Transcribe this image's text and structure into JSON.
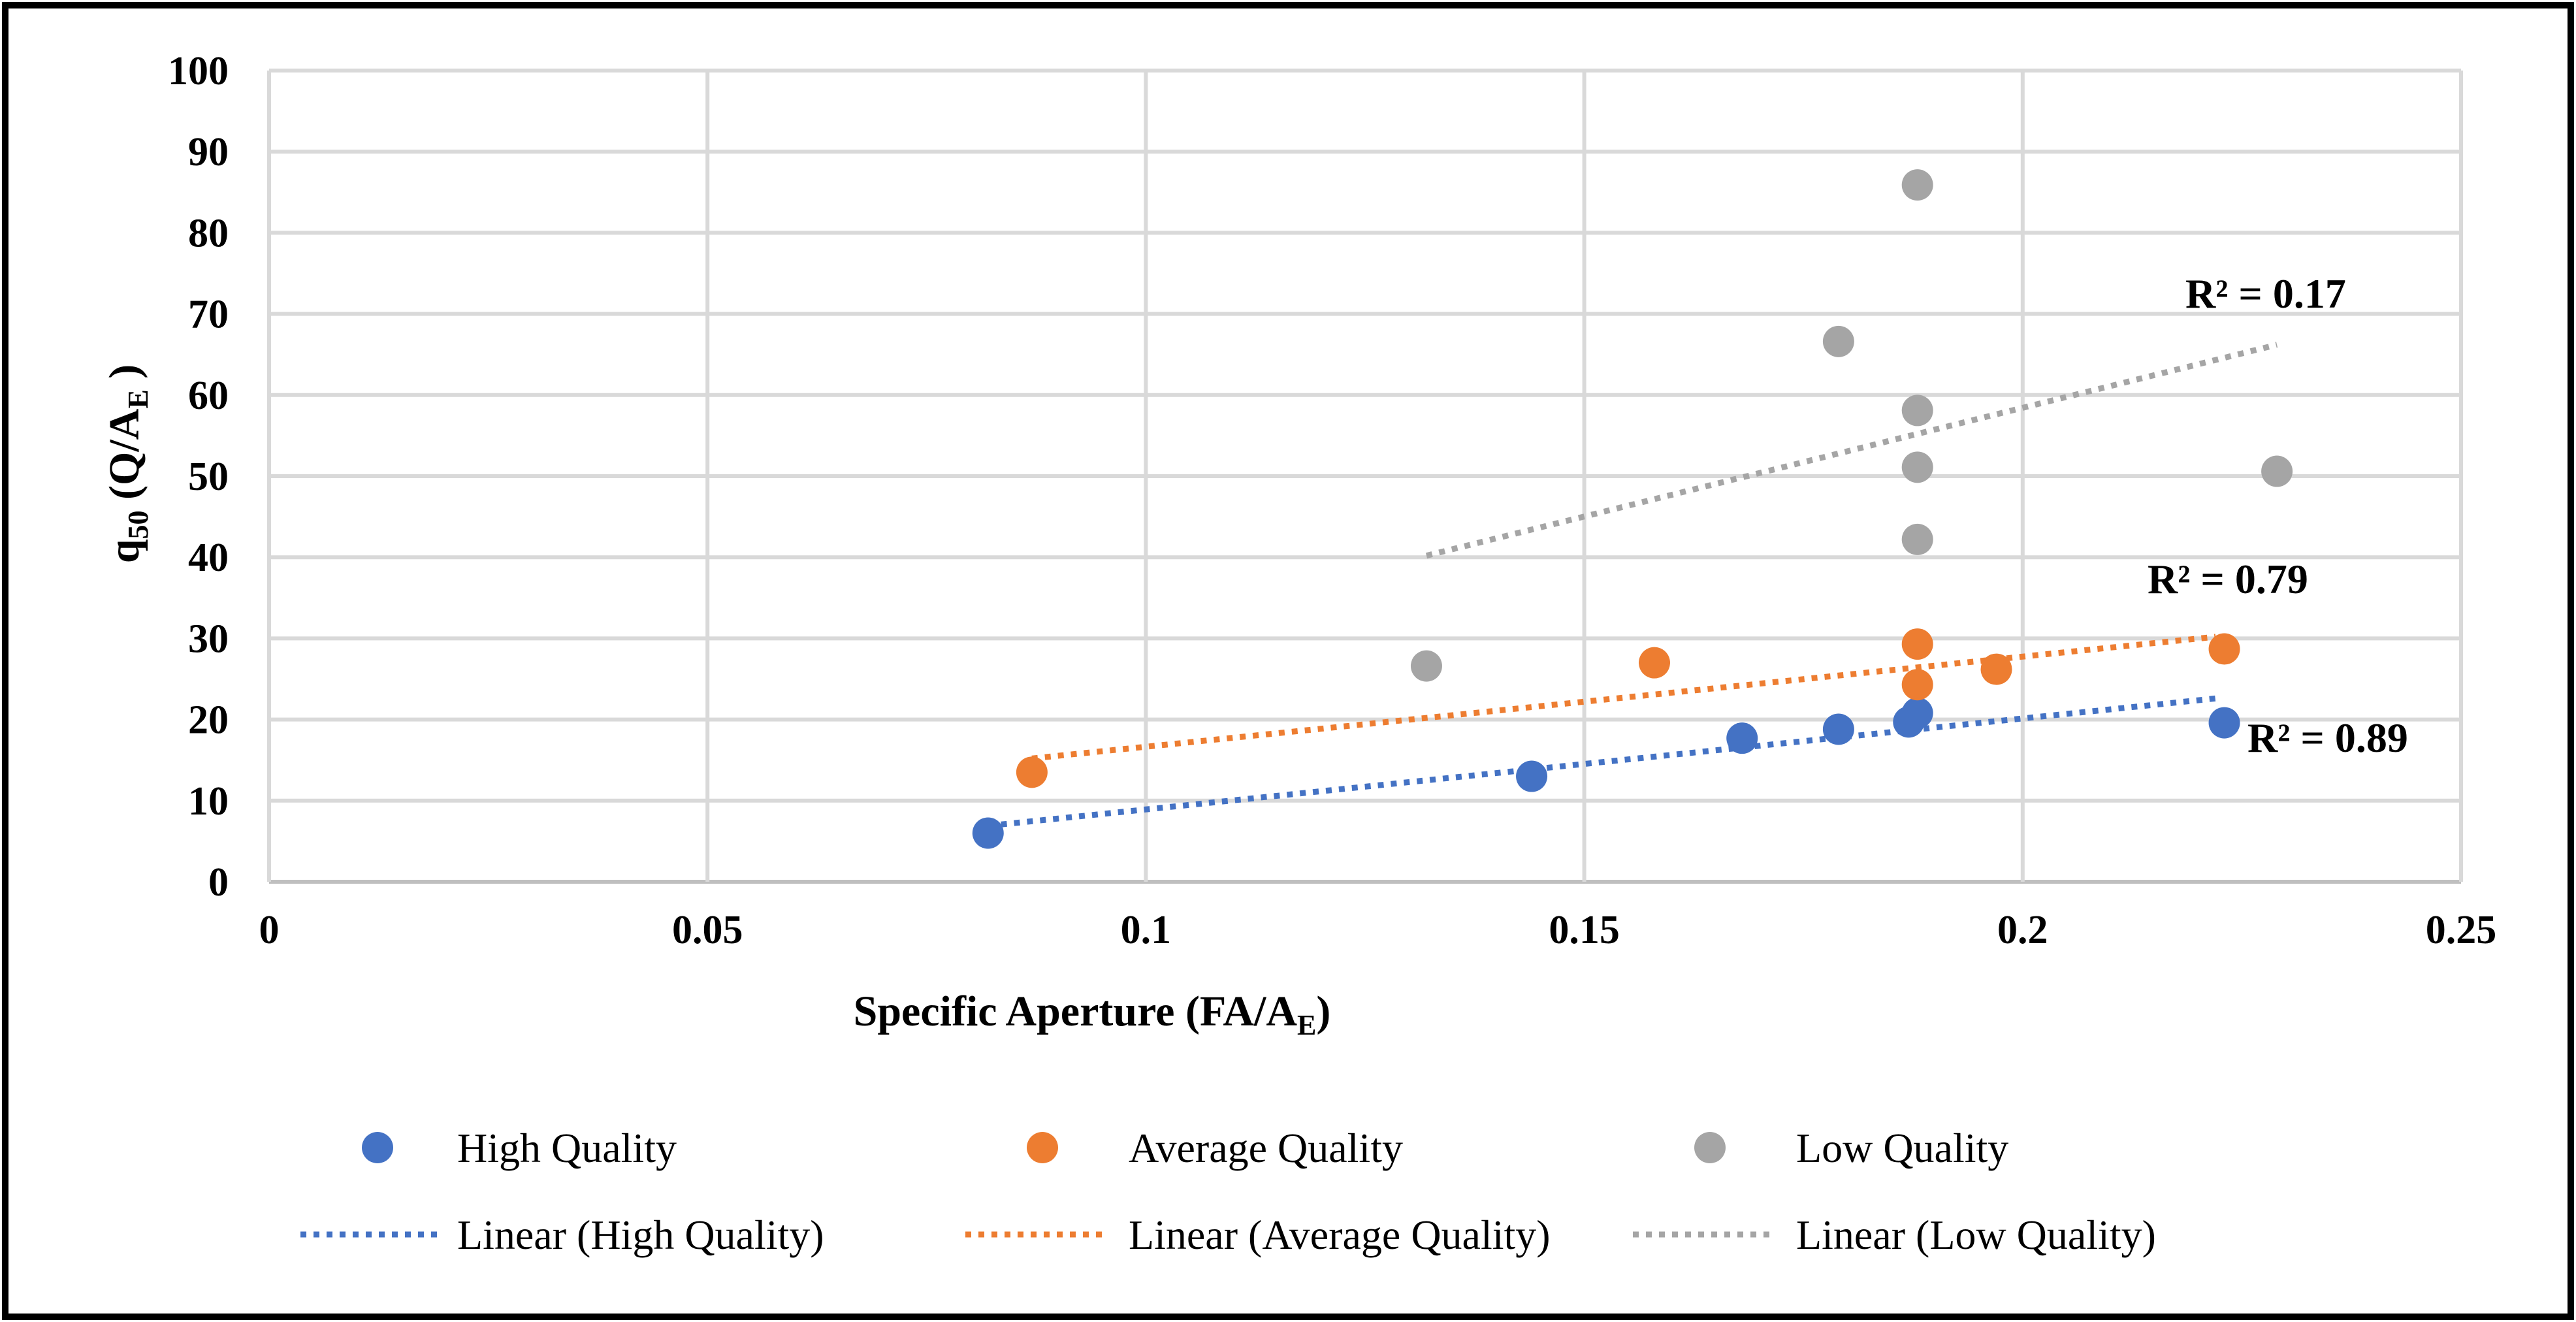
{
  "chart_data": {
    "type": "scatter",
    "xlabel": {
      "main": "Specific Aperture (FA/A",
      "sub": "E",
      "close": ")"
    },
    "ylabel": {
      "main": "q",
      "sub1": "50",
      "mid": " (Q/A",
      "sub2": "E",
      "close": " )"
    },
    "xlim": [
      0,
      0.25
    ],
    "ylim": [
      0,
      100
    ],
    "x_ticks": [
      0,
      0.05,
      0.1,
      0.15,
      0.2,
      0.25
    ],
    "x_tick_labels": [
      "0",
      "0.05",
      "0.1",
      "0.15",
      "0.2",
      "0.25"
    ],
    "y_ticks": [
      0,
      10,
      20,
      30,
      40,
      50,
      60,
      70,
      80,
      90,
      100
    ],
    "y_tick_labels": [
      "0",
      "10",
      "20",
      "30",
      "40",
      "50",
      "60",
      "70",
      "80",
      "90",
      "100"
    ],
    "grid": true,
    "legend_position": "bottom",
    "series": [
      {
        "name": "High Quality",
        "color": "#4472C4",
        "points": [
          [
            0.082,
            6
          ],
          [
            0.144,
            13
          ],
          [
            0.168,
            17.7
          ],
          [
            0.179,
            18.8
          ],
          [
            0.187,
            19.7
          ],
          [
            0.188,
            20.8
          ],
          [
            0.223,
            19.6
          ]
        ],
        "trendline": {
          "name": "Linear (High Quality)",
          "x_start": 0.082,
          "y_start": 6.9,
          "x_end": 0.222,
          "y_end": 22.6,
          "r2_label": "R² = 0.89"
        }
      },
      {
        "name": "Average Quality",
        "color": "#ED7D31",
        "points": [
          [
            0.087,
            13.5
          ],
          [
            0.158,
            27
          ],
          [
            0.188,
            29.3
          ],
          [
            0.188,
            24.3
          ],
          [
            0.197,
            26.2
          ],
          [
            0.223,
            28.7
          ]
        ],
        "trendline": {
          "name": "Linear (Average Quality)",
          "x_start": 0.087,
          "y_start": 15.2,
          "x_end": 0.222,
          "y_end": 30.2,
          "r2_label": "R² = 0.79"
        }
      },
      {
        "name": "Low Quality",
        "color": "#A5A5A5",
        "points": [
          [
            0.132,
            26.6
          ],
          [
            0.179,
            66.6
          ],
          [
            0.188,
            85.9
          ],
          [
            0.188,
            58.1
          ],
          [
            0.188,
            51.1
          ],
          [
            0.188,
            42.2
          ],
          [
            0.229,
            50.6
          ]
        ],
        "trendline": {
          "name": "Linear (Low Quality)",
          "x_start": 0.132,
          "y_start": 40.2,
          "x_end": 0.229,
          "y_end": 66.2,
          "r2_label": "R² = 0.17"
        }
      }
    ]
  }
}
